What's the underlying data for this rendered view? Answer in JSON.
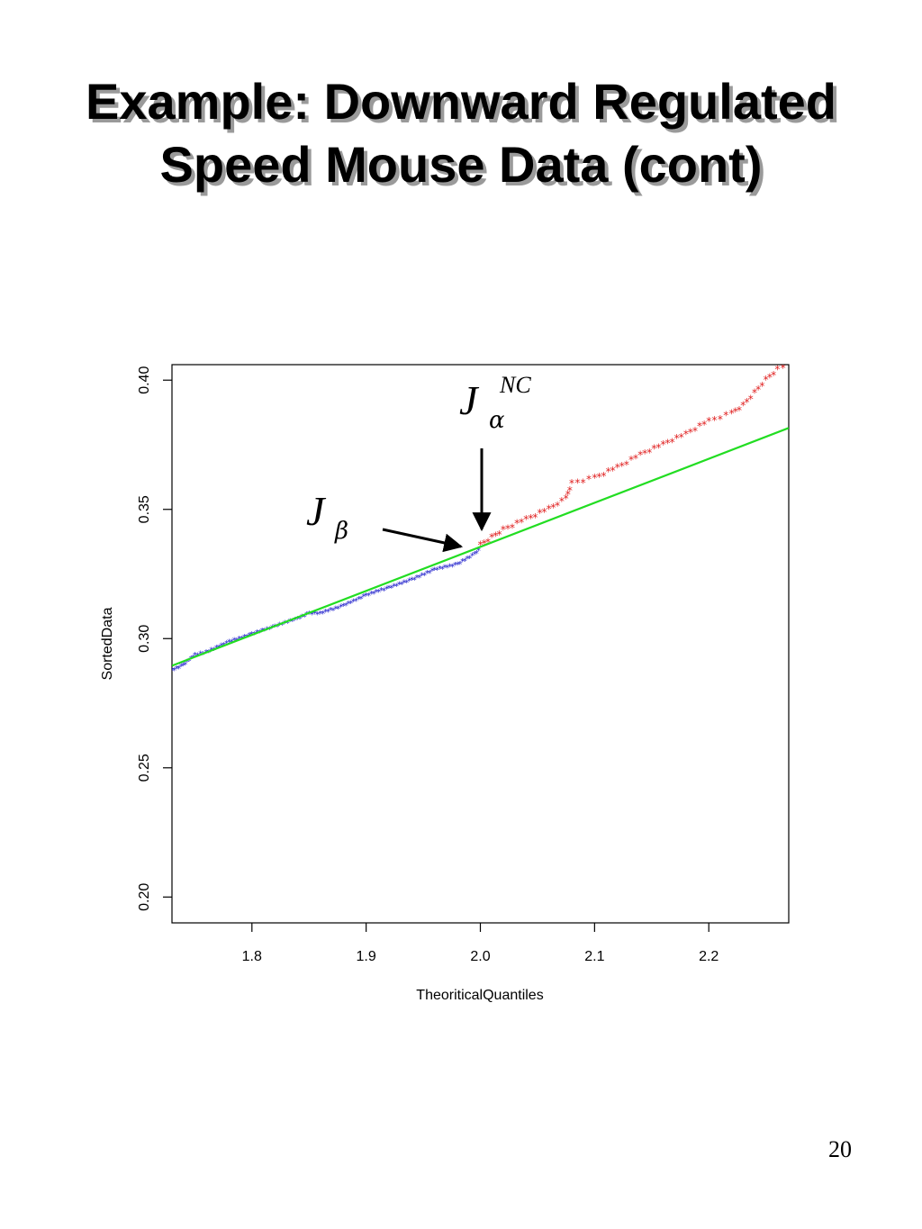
{
  "slide": {
    "title_line1": "Example:  Downward Regulated",
    "title_line2": "Speed Mouse Data (cont)",
    "page_number": "20"
  },
  "annotations": {
    "j_alpha": {
      "base": "J",
      "sub": "α",
      "sup": "NC"
    },
    "j_beta": {
      "base": "J",
      "sub": "β"
    }
  },
  "colors": {
    "lower_points": "#2222cc",
    "upper_points": "#e02020",
    "fit_line": "#22dd22",
    "axis": "#000000",
    "arrow": "#000000"
  },
  "chart_data": {
    "type": "scatter",
    "xlabel": "TheoriticalQuantiles",
    "ylabel": "SortedData",
    "xlim": [
      1.73,
      2.27
    ],
    "ylim": [
      0.19,
      0.406
    ],
    "xticks": [
      1.8,
      1.9,
      2.0,
      2.1,
      2.2
    ],
    "xtick_labels": [
      "1.8",
      "1.9",
      "2.0",
      "2.1",
      "2.2"
    ],
    "yticks": [
      0.2,
      0.25,
      0.3,
      0.35,
      0.4
    ],
    "ytick_labels": [
      "0.20",
      "0.25",
      "0.30",
      "0.35",
      "0.40"
    ],
    "grid": false,
    "legend": "none",
    "fit_line": {
      "x": [
        1.73,
        2.27
      ],
      "y": [
        0.2895,
        0.3815
      ]
    },
    "threshold_x": 2.0,
    "series": [
      {
        "marker": "*",
        "x": [
          1.73,
          1.74,
          1.75,
          1.76,
          1.78,
          1.8,
          1.82,
          1.84,
          1.85,
          1.86,
          1.88,
          1.9,
          1.92,
          1.94,
          1.96,
          1.98,
          1.995,
          2.0
        ],
        "y": [
          0.288,
          0.29,
          0.294,
          0.295,
          0.299,
          0.302,
          0.305,
          0.308,
          0.31,
          0.31,
          0.313,
          0.317,
          0.32,
          0.323,
          0.327,
          0.329,
          0.333,
          0.335
        ]
      },
      {
        "marker": "*",
        "x": [
          2.0,
          2.01,
          2.02,
          2.04,
          2.06,
          2.075,
          2.08,
          2.1,
          2.12,
          2.14,
          2.16,
          2.18,
          2.2,
          2.22,
          2.23,
          2.24,
          2.25,
          2.26,
          2.27
        ],
        "y": [
          0.336,
          0.339,
          0.342,
          0.346,
          0.35,
          0.354,
          0.36,
          0.362,
          0.366,
          0.371,
          0.375,
          0.379,
          0.384,
          0.387,
          0.39,
          0.395,
          0.4,
          0.404,
          0.406
        ]
      }
    ]
  }
}
